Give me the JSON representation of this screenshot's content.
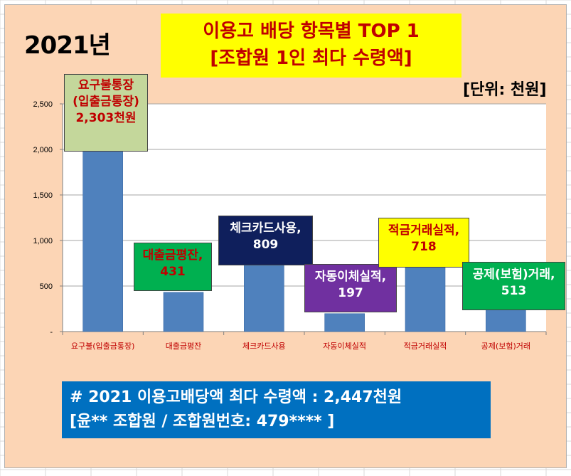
{
  "header": {
    "year": "2021년",
    "title_line1": "이용고 배당 항목별 TOP 1",
    "title_line2": "[조합원 1인 최다 수령액]",
    "unit": "[단위: 천원]"
  },
  "chart_data": {
    "type": "bar",
    "categories": [
      "요구불(입출금통장)",
      "대출금평잔",
      "체크카드사용",
      "자동이체실적",
      "적금거래실적",
      "공제(보험)거래"
    ],
    "values": [
      2303,
      431,
      809,
      197,
      718,
      513
    ],
    "ylim": [
      0,
      2500
    ],
    "yticks": [
      0,
      500,
      1000,
      1500,
      2000,
      2500
    ],
    "ytick_labels": [
      "-",
      "500",
      "1,000",
      "1,500",
      "2,000",
      "2,500"
    ],
    "grid": true,
    "bar_color": "#4f81bd",
    "callouts": [
      {
        "line1": "요구불통장",
        "line2": "(입출금통장)",
        "line3": "2,303천원",
        "bg": "#c4d79b",
        "fg": "#c00000"
      },
      {
        "line1": "대출금평잔,",
        "line2": "431",
        "bg": "#00b050",
        "fg": "#c00000"
      },
      {
        "line1": "체크카드사용,",
        "line2": "809",
        "bg": "#0f1f5c",
        "fg": "#ffffff"
      },
      {
        "line1": "자동이체실적,",
        "line2": "197",
        "bg": "#7030a0",
        "fg": "#ffffff"
      },
      {
        "line1": "적금거래실적,",
        "line2": "718",
        "bg": "#ffff00",
        "fg": "#c00000"
      },
      {
        "line1": "공제(보험)거래,",
        "line2": "513",
        "bg": "#00b050",
        "fg": "#ffffff"
      }
    ]
  },
  "summary": {
    "line1": "# 2021  이용고배당액 최다 수령액 : 2,447천원",
    "line2": "  [윤** 조합원 / 조합원번호: 479**** ]"
  }
}
